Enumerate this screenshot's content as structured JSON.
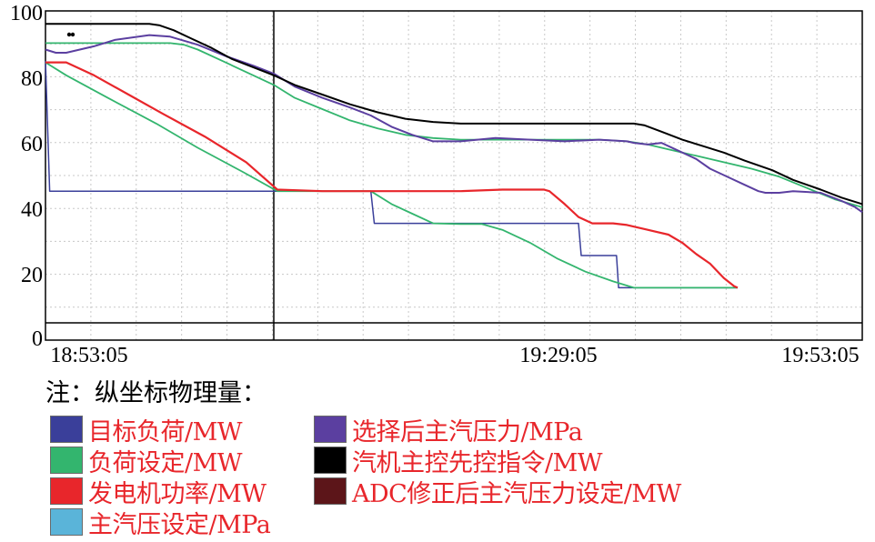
{
  "chart_data": {
    "type": "line",
    "x_ticks": [
      "18:53:05",
      "19:29:05",
      "19:53:05"
    ],
    "y_ticks": [
      "0",
      "20",
      "40",
      "60",
      "80",
      "100"
    ],
    "ylim": [
      0,
      100
    ],
    "cursor_time": "19:10:35",
    "note": "注：纵坐标物理量：",
    "series": [
      {
        "name": "目标负荷/MW",
        "color": "#3a3f9a",
        "points": [
          [
            0,
            84.5
          ],
          [
            0.6,
            44
          ],
          [
            8,
            44
          ],
          [
            33.5,
            44
          ],
          [
            47,
            44
          ],
          [
            47.5,
            34
          ],
          [
            77,
            34
          ],
          [
            77.4,
            24
          ],
          [
            82.5,
            24
          ],
          [
            82.8,
            14
          ],
          [
            100,
            14
          ]
        ]
      },
      {
        "name": "负荷设定/MW",
        "color": "#33b56e",
        "points": [
          [
            0,
            84
          ],
          [
            3,
            80
          ],
          [
            9,
            73
          ],
          [
            16,
            65
          ],
          [
            22,
            57.5
          ],
          [
            28.5,
            50
          ],
          [
            33.5,
            44
          ],
          [
            47,
            44
          ],
          [
            50,
            40
          ],
          [
            53,
            37
          ],
          [
            56,
            34
          ],
          [
            60,
            33.8
          ],
          [
            63,
            33.8
          ],
          [
            66,
            32
          ],
          [
            70,
            28
          ],
          [
            74,
            23
          ],
          [
            78,
            19
          ],
          [
            82,
            16
          ],
          [
            85,
            14
          ],
          [
            100,
            14
          ]
        ]
      },
      {
        "name": "发电机功率/MW",
        "color": "#e8262b",
        "points": [
          [
            0,
            84
          ],
          [
            3,
            84
          ],
          [
            7,
            80
          ],
          [
            12,
            74
          ],
          [
            17,
            68
          ],
          [
            23,
            61
          ],
          [
            29,
            53
          ],
          [
            33.5,
            44.5
          ],
          [
            40,
            44
          ],
          [
            55,
            44
          ],
          [
            60,
            44
          ],
          [
            66,
            44.5
          ],
          [
            72,
            44.5
          ],
          [
            72.8,
            44
          ],
          [
            75,
            40
          ],
          [
            77,
            36
          ],
          [
            79,
            34
          ],
          [
            82,
            34
          ],
          [
            84,
            33.5
          ],
          [
            87,
            32
          ],
          [
            90,
            30.5
          ],
          [
            92,
            28
          ],
          [
            94,
            24.5
          ],
          [
            96,
            21.5
          ],
          [
            98,
            17
          ],
          [
            99.5,
            14.5
          ],
          [
            100,
            14
          ]
        ]
      },
      {
        "name": "主汽压设定/MPa",
        "color": "#5ab4d9",
        "points": []
      },
      {
        "name": "选择后主汽压力/MPa",
        "color": "#5b3fa0",
        "points": [
          [
            0,
            88
          ],
          [
            1.5,
            87
          ],
          [
            3,
            87
          ],
          [
            7,
            89
          ],
          [
            10,
            91
          ],
          [
            15,
            92.5
          ],
          [
            18,
            92
          ],
          [
            22,
            89.5
          ],
          [
            26,
            86
          ],
          [
            30,
            83
          ],
          [
            33,
            80.5
          ],
          [
            36,
            76.5
          ],
          [
            40,
            73
          ],
          [
            44,
            70
          ],
          [
            47,
            67.5
          ],
          [
            50,
            64
          ],
          [
            53,
            61.5
          ],
          [
            56,
            59.5
          ],
          [
            60,
            59.5
          ],
          [
            65,
            60.5
          ],
          [
            70,
            60
          ],
          [
            75,
            59.5
          ],
          [
            80,
            60
          ],
          [
            84,
            59.5
          ],
          [
            85,
            59
          ],
          [
            87,
            58.5
          ],
          [
            89,
            59
          ],
          [
            91,
            57
          ],
          [
            94,
            54
          ],
          [
            96,
            51
          ],
          [
            99,
            48
          ],
          [
            101,
            46
          ],
          [
            103,
            44
          ],
          [
            104,
            43.5
          ],
          [
            106,
            43.5
          ],
          [
            108,
            44
          ],
          [
            112,
            43.5
          ],
          [
            115,
            41
          ],
          [
            117,
            39
          ],
          [
            118,
            37.5
          ]
        ]
      },
      {
        "name": "汽机主控先控指令/MW",
        "color": "#000000",
        "points": [
          [
            0,
            96
          ],
          [
            15,
            96
          ],
          [
            16.5,
            95.5
          ],
          [
            18.5,
            94
          ],
          [
            21,
            91.5
          ],
          [
            24,
            88.5
          ],
          [
            27,
            85
          ],
          [
            30,
            82.5
          ],
          [
            33,
            80
          ],
          [
            36,
            77
          ],
          [
            40,
            74
          ],
          [
            44,
            71
          ],
          [
            48,
            68.5
          ],
          [
            52,
            66.5
          ],
          [
            56,
            65.5
          ],
          [
            60,
            65
          ],
          [
            70,
            65
          ],
          [
            80,
            65
          ],
          [
            85,
            65
          ],
          [
            86.5,
            64.5
          ],
          [
            89,
            62.5
          ],
          [
            92,
            60
          ],
          [
            95,
            58
          ],
          [
            98,
            56
          ],
          [
            101,
            53.5
          ],
          [
            105,
            50.5
          ],
          [
            108,
            47.5
          ],
          [
            112,
            44.5
          ],
          [
            115,
            42
          ],
          [
            118,
            40
          ]
        ]
      },
      {
        "name": "ADC修正后主汽压力设定/MW",
        "color": "#5c1519",
        "points": []
      }
    ],
    "extra_green_upper": {
      "color": "#33b56e",
      "points": [
        [
          0,
          90
        ],
        [
          18,
          90
        ],
        [
          20,
          89.5
        ],
        [
          22,
          88
        ],
        [
          26,
          84
        ],
        [
          30,
          80
        ],
        [
          33,
          77
        ],
        [
          36,
          73
        ],
        [
          40,
          69.5
        ],
        [
          44,
          66
        ],
        [
          48,
          63.5
        ],
        [
          52,
          61.5
        ],
        [
          56,
          60.5
        ],
        [
          60,
          60
        ],
        [
          70,
          60
        ],
        [
          80,
          60
        ],
        [
          84,
          59.5
        ],
        [
          87,
          58.5
        ],
        [
          90,
          57
        ],
        [
          94,
          55
        ],
        [
          98,
          53
        ],
        [
          102,
          51
        ],
        [
          106,
          48.5
        ],
        [
          110,
          45
        ],
        [
          114,
          41.5
        ],
        [
          118,
          39
        ]
      ]
    }
  }
}
